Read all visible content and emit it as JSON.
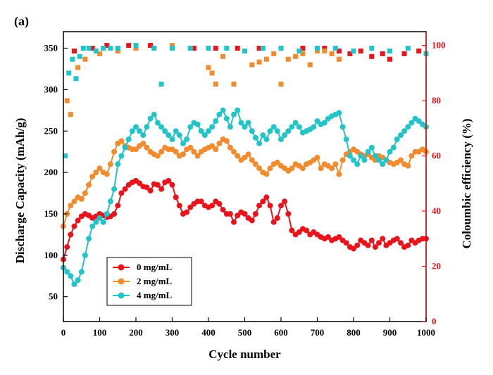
{
  "chart_data": {
    "type": "scatter",
    "panel_label": "(a)",
    "xlabel": "Cycle number",
    "ylabel": "Discharge Capacity (mAh/g)",
    "y2label": "Coloumbic efficiency (%)",
    "xlim": [
      0,
      1000
    ],
    "ylim": [
      20,
      370
    ],
    "y2lim": [
      0,
      105
    ],
    "x_ticks": [
      0,
      100,
      200,
      300,
      400,
      500,
      600,
      700,
      800,
      900,
      1000
    ],
    "y_ticks": [
      50,
      100,
      150,
      200,
      250,
      300,
      350
    ],
    "y2_ticks": [
      0,
      20,
      40,
      60,
      80,
      100
    ],
    "legend_position": "bottom-left",
    "series": [
      {
        "name": "0 mg/mL",
        "color": "#e8141b",
        "capacity": {
          "x": [
            0,
            10,
            20,
            30,
            40,
            50,
            60,
            70,
            80,
            90,
            100,
            110,
            120,
            130,
            140,
            150,
            160,
            170,
            180,
            190,
            200,
            210,
            220,
            230,
            240,
            250,
            260,
            270,
            280,
            290,
            300,
            310,
            320,
            330,
            340,
            350,
            360,
            370,
            380,
            390,
            400,
            410,
            420,
            430,
            440,
            450,
            460,
            470,
            480,
            490,
            500,
            510,
            520,
            530,
            540,
            550,
            560,
            570,
            580,
            590,
            600,
            610,
            620,
            630,
            640,
            650,
            660,
            670,
            680,
            690,
            700,
            710,
            720,
            730,
            740,
            750,
            760,
            770,
            780,
            790,
            800,
            810,
            820,
            830,
            840,
            850,
            860,
            870,
            880,
            890,
            900,
            910,
            920,
            930,
            940,
            950,
            960,
            970,
            980,
            990,
            1000
          ],
          "y": [
            95,
            110,
            125,
            135,
            142,
            147,
            150,
            148,
            145,
            147,
            150,
            148,
            146,
            147,
            150,
            160,
            175,
            180,
            185,
            188,
            190,
            187,
            183,
            182,
            178,
            186,
            185,
            180,
            188,
            190,
            185,
            170,
            160,
            150,
            152,
            158,
            162,
            165,
            165,
            160,
            158,
            160,
            165,
            162,
            155,
            150,
            150,
            140,
            148,
            152,
            150,
            145,
            142,
            150,
            160,
            165,
            170,
            160,
            140,
            145,
            160,
            165,
            150,
            130,
            125,
            128,
            132,
            130,
            125,
            128,
            125,
            122,
            120,
            122,
            118,
            120,
            122,
            118,
            115,
            110,
            108,
            112,
            118,
            115,
            112,
            118,
            110,
            115,
            120,
            112,
            115,
            118,
            120,
            115,
            110,
            112,
            118,
            115,
            118,
            120,
            120
          ]
        },
        "efficiency": {
          "x": [
            30,
            80,
            120,
            180,
            240,
            300,
            360,
            420,
            480,
            540,
            600,
            660,
            720,
            760,
            790,
            820,
            850,
            880,
            900,
            940,
            980
          ],
          "y": [
            98,
            99,
            100,
            100,
            100,
            99,
            99,
            99,
            99,
            99,
            99,
            99,
            99,
            98,
            97,
            98,
            96,
            97,
            95,
            97,
            98
          ]
        }
      },
      {
        "name": "2 mg/mL",
        "color": "#f28a2e",
        "capacity": {
          "x": [
            0,
            10,
            20,
            30,
            40,
            50,
            60,
            70,
            80,
            90,
            100,
            110,
            120,
            130,
            140,
            150,
            160,
            170,
            180,
            190,
            200,
            210,
            220,
            230,
            240,
            250,
            260,
            270,
            280,
            290,
            300,
            310,
            320,
            330,
            340,
            350,
            360,
            370,
            380,
            390,
            400,
            410,
            420,
            430,
            440,
            450,
            460,
            470,
            480,
            490,
            500,
            510,
            520,
            530,
            540,
            550,
            560,
            570,
            580,
            590,
            600,
            610,
            620,
            630,
            640,
            650,
            660,
            670,
            680,
            690,
            700,
            710,
            720,
            730,
            740,
            750,
            760,
            770,
            780,
            790,
            800,
            810,
            820,
            830,
            840,
            850,
            860,
            870,
            880,
            890,
            900,
            910,
            920,
            930,
            940,
            950,
            960,
            970,
            980,
            990,
            1000
          ],
          "y": [
            135,
            150,
            160,
            165,
            170,
            168,
            175,
            185,
            195,
            200,
            205,
            200,
            198,
            210,
            225,
            235,
            238,
            232,
            230,
            228,
            228,
            232,
            235,
            230,
            225,
            222,
            220,
            225,
            230,
            228,
            228,
            225,
            220,
            222,
            228,
            230,
            225,
            220,
            225,
            228,
            230,
            232,
            228,
            235,
            240,
            238,
            230,
            225,
            220,
            215,
            218,
            222,
            215,
            210,
            205,
            200,
            198,
            205,
            210,
            212,
            208,
            205,
            202,
            205,
            210,
            208,
            205,
            210,
            212,
            215,
            218,
            205,
            210,
            208,
            205,
            210,
            198,
            215,
            222,
            225,
            228,
            225,
            222,
            220,
            222,
            218,
            215,
            220,
            218,
            215,
            212,
            210,
            212,
            215,
            210,
            208,
            220,
            225,
            225,
            228,
            225
          ]
        },
        "efficiency": {
          "x": [
            10,
            20,
            40,
            60,
            100,
            150,
            200,
            250,
            300,
            350,
            400,
            410,
            420,
            440,
            470,
            500,
            520,
            540,
            560,
            580,
            600,
            620,
            640,
            660,
            680,
            700,
            720,
            740,
            760
          ],
          "y": [
            80,
            75,
            92,
            95,
            97,
            98,
            99,
            99,
            100,
            99,
            92,
            90,
            86,
            96,
            86,
            98,
            93,
            94,
            95,
            97,
            86,
            95,
            96,
            97,
            93,
            98,
            98,
            97,
            95
          ]
        }
      },
      {
        "name": "4 mg/mL",
        "color": "#22c4c8",
        "capacity": {
          "x": [
            0,
            10,
            20,
            30,
            40,
            50,
            60,
            70,
            80,
            90,
            100,
            110,
            120,
            130,
            140,
            150,
            160,
            170,
            180,
            190,
            200,
            210,
            220,
            230,
            240,
            250,
            260,
            270,
            280,
            290,
            300,
            310,
            320,
            330,
            340,
            350,
            360,
            370,
            380,
            390,
            400,
            410,
            420,
            430,
            440,
            450,
            460,
            470,
            480,
            490,
            500,
            510,
            520,
            530,
            540,
            550,
            560,
            570,
            580,
            590,
            600,
            610,
            620,
            630,
            640,
            650,
            660,
            670,
            680,
            690,
            700,
            710,
            720,
            730,
            740,
            750,
            760,
            770,
            780,
            790,
            800,
            810,
            820,
            830,
            840,
            850,
            860,
            870,
            880,
            890,
            900,
            910,
            920,
            930,
            940,
            950,
            960,
            970,
            980,
            990,
            1000
          ],
          "y": [
            85,
            80,
            75,
            65,
            70,
            80,
            100,
            120,
            135,
            140,
            145,
            140,
            150,
            165,
            180,
            210,
            220,
            230,
            240,
            250,
            255,
            250,
            245,
            255,
            265,
            270,
            260,
            255,
            250,
            245,
            240,
            250,
            245,
            235,
            240,
            255,
            260,
            258,
            250,
            245,
            250,
            255,
            262,
            270,
            275,
            265,
            255,
            270,
            275,
            260,
            255,
            260,
            250,
            242,
            235,
            245,
            240,
            250,
            255,
            250,
            240,
            245,
            250,
            255,
            260,
            255,
            248,
            250,
            252,
            255,
            262,
            258,
            260,
            265,
            268,
            270,
            272,
            255,
            240,
            220,
            215,
            210,
            220,
            215,
            225,
            230,
            220,
            215,
            210,
            215,
            225,
            230,
            240,
            245,
            250,
            255,
            260,
            265,
            262,
            258,
            255
          ]
        },
        "efficiency": {
          "x": [
            5,
            15,
            25,
            35,
            45,
            55,
            70,
            90,
            110,
            130,
            150,
            200,
            250,
            270,
            300,
            350,
            400,
            450,
            500,
            550,
            600,
            650,
            700,
            750,
            800,
            850,
            900,
            950,
            1000
          ],
          "y": [
            60,
            90,
            95,
            88,
            96,
            99,
            99,
            98,
            99,
            99,
            99,
            100,
            99,
            86,
            99,
            99,
            99,
            99,
            98,
            99,
            99,
            98,
            99,
            99,
            98,
            99,
            98,
            99,
            97
          ]
        }
      }
    ]
  }
}
